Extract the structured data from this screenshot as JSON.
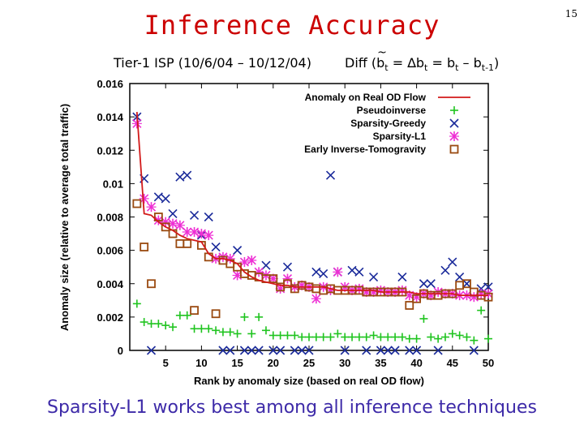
{
  "slide": {
    "title": "Inference Accuracy",
    "page_number": "15",
    "subtitle_left": "Tier-1 ISP (10/6/04 – 10/12/04)",
    "subtitle_right_prefix": "Diff (",
    "subtitle_right_b": "b",
    "subtitle_right_tilde": "~",
    "subtitle_right_sub1": "t",
    "subtitle_right_mid": " = ∆b",
    "subtitle_right_sub2": "t",
    "subtitle_right_mid2": " = b",
    "subtitle_right_sub3": "t",
    "subtitle_right_mid3": " – b",
    "subtitle_right_sub4": "t-1",
    "subtitle_right_suffix": ")",
    "caption": "Sparsity-L1 works best among all inference techniques"
  },
  "colors": {
    "title": "#cc0000",
    "caption": "#3d2aa8",
    "real": "#d21a1a",
    "pseudoinverse": "#1fc41f",
    "greedy": "#1a2a9a",
    "l1": "#ee2fd4",
    "tomogravity": "#9a4a10"
  },
  "chart_data": {
    "type": "scatter",
    "xlabel": "Rank by anomaly size (based on real OD flow)",
    "ylabel": "Anomaly size (relative to average total traffic)",
    "xlim": [
      0,
      50
    ],
    "ylim": [
      0,
      0.016
    ],
    "xticks": [
      "5",
      "10",
      "15",
      "20",
      "25",
      "30",
      "35",
      "40",
      "45",
      "50"
    ],
    "xtick_values": [
      5,
      10,
      15,
      20,
      25,
      30,
      35,
      40,
      45,
      50
    ],
    "yticks": [
      "0",
      "0.002",
      "0.004",
      "0.006",
      "0.008",
      "0.01",
      "0.012",
      "0.014",
      "0.016"
    ],
    "ytick_values": [
      0,
      0.002,
      0.004,
      0.006,
      0.008,
      0.01,
      0.012,
      0.014,
      0.016
    ],
    "legend_position": "top-right",
    "series": [
      {
        "name": "Anomaly on Real OD Flow",
        "style": "line",
        "x": [
          1,
          2,
          3,
          4,
          5,
          6,
          7,
          8,
          9,
          10,
          11,
          12,
          13,
          14,
          15,
          16,
          17,
          18,
          19,
          20,
          21,
          22,
          23,
          24,
          25,
          26,
          27,
          28,
          29,
          30,
          31,
          32,
          33,
          34,
          35,
          36,
          37,
          38,
          39,
          40,
          41,
          42,
          43,
          44,
          45,
          46,
          47,
          48,
          49,
          50
        ],
        "y": [
          0.0143,
          0.0082,
          0.0081,
          0.0077,
          0.0074,
          0.0072,
          0.0069,
          0.0067,
          0.0066,
          0.0065,
          0.0058,
          0.0055,
          0.0055,
          0.0054,
          0.0052,
          0.0047,
          0.0044,
          0.0042,
          0.0041,
          0.004,
          0.0039,
          0.0039,
          0.0038,
          0.0038,
          0.0038,
          0.0038,
          0.0038,
          0.0037,
          0.0036,
          0.0036,
          0.0036,
          0.0036,
          0.0036,
          0.0036,
          0.0035,
          0.0035,
          0.0035,
          0.0035,
          0.0035,
          0.0034,
          0.0034,
          0.0034,
          0.0034,
          0.0034,
          0.0034,
          0.0033,
          0.0033,
          0.0033,
          0.0033,
          0.0033
        ]
      },
      {
        "name": "Pseudoinverse",
        "style": "plus",
        "x": [
          1,
          2,
          3,
          4,
          5,
          6,
          7,
          8,
          9,
          10,
          11,
          12,
          13,
          14,
          15,
          16,
          17,
          18,
          19,
          20,
          21,
          22,
          23,
          24,
          25,
          26,
          27,
          28,
          29,
          30,
          31,
          32,
          33,
          34,
          35,
          36,
          37,
          38,
          39,
          40,
          41,
          42,
          43,
          44,
          45,
          46,
          47,
          48,
          49,
          50
        ],
        "y": [
          0.0028,
          0.0017,
          0.0016,
          0.0016,
          0.0015,
          0.0014,
          0.0021,
          0.0021,
          0.0013,
          0.0013,
          0.0013,
          0.0012,
          0.0011,
          0.0011,
          0.001,
          0.002,
          0.001,
          0.002,
          0.0012,
          0.0009,
          0.0009,
          0.0009,
          0.0009,
          0.0008,
          0.0008,
          0.0008,
          0.0008,
          0.0008,
          0.001,
          0.0008,
          0.0008,
          0.0008,
          0.0008,
          0.0009,
          0.0008,
          0.0008,
          0.0008,
          0.0008,
          0.0007,
          0.0007,
          0.0019,
          0.0008,
          0.0007,
          0.0008,
          0.001,
          0.0009,
          0.0008,
          0.0006,
          0.0024,
          0.0007
        ]
      },
      {
        "name": "Sparsity-Greedy",
        "style": "x",
        "x": [
          1,
          2,
          3,
          4,
          5,
          6,
          7,
          8,
          9,
          10,
          11,
          12,
          13,
          14,
          15,
          16,
          17,
          18,
          19,
          20,
          21,
          22,
          23,
          24,
          25,
          26,
          27,
          28,
          29,
          30,
          31,
          32,
          33,
          34,
          35,
          36,
          37,
          38,
          39,
          40,
          41,
          42,
          43,
          44,
          45,
          46,
          47,
          48,
          49,
          50
        ],
        "y": [
          0.014,
          0.0103,
          0.0,
          0.0092,
          0.0091,
          0.0082,
          0.0104,
          0.0105,
          0.0081,
          0.0069,
          0.008,
          0.0062,
          0.0,
          0.0,
          0.006,
          0.0,
          0.0,
          0.0,
          0.0051,
          0.0,
          0.0,
          0.005,
          0.0,
          0.0,
          0.0,
          0.0047,
          0.0046,
          0.0105,
          0.0047,
          0.0,
          0.0048,
          0.0047,
          0.0,
          0.0044,
          0.0,
          0.0,
          0.0,
          0.0044,
          0.0,
          0.0,
          0.004,
          0.004,
          0.0,
          0.0048,
          0.0053,
          0.0044,
          0.004,
          0.0,
          0.0037,
          0.0038
        ]
      },
      {
        "name": "Sparsity-L1",
        "style": "asterisk",
        "x": [
          1,
          2,
          3,
          4,
          5,
          6,
          7,
          8,
          9,
          10,
          11,
          12,
          13,
          14,
          15,
          16,
          17,
          18,
          19,
          20,
          21,
          22,
          23,
          24,
          25,
          26,
          27,
          28,
          29,
          30,
          31,
          32,
          33,
          34,
          35,
          36,
          37,
          38,
          39,
          40,
          41,
          42,
          43,
          44,
          45,
          46,
          47,
          48,
          49,
          50
        ],
        "y": [
          0.0136,
          0.0091,
          0.0086,
          0.0078,
          0.0077,
          0.0076,
          0.0075,
          0.0071,
          0.0071,
          0.007,
          0.0069,
          0.0055,
          0.0056,
          0.0055,
          0.0045,
          0.0053,
          0.0054,
          0.0047,
          0.0045,
          0.0043,
          0.0037,
          0.0043,
          0.0038,
          0.0039,
          0.0038,
          0.0031,
          0.0038,
          0.0036,
          0.0047,
          0.0038,
          0.0036,
          0.0037,
          0.0035,
          0.0035,
          0.0036,
          0.0035,
          0.0035,
          0.0036,
          0.0033,
          0.0032,
          0.0034,
          0.0033,
          0.0035,
          0.0034,
          0.0034,
          0.0033,
          0.0033,
          0.0032,
          0.0034,
          0.0034
        ]
      },
      {
        "name": "Early Inverse-Tomogravity",
        "style": "square",
        "x": [
          1,
          2,
          3,
          4,
          5,
          6,
          7,
          8,
          9,
          10,
          11,
          12,
          13,
          14,
          15,
          16,
          17,
          18,
          19,
          20,
          21,
          22,
          23,
          24,
          25,
          26,
          27,
          28,
          29,
          30,
          31,
          32,
          33,
          34,
          35,
          36,
          37,
          38,
          39,
          40,
          41,
          42,
          43,
          44,
          45,
          46,
          47,
          48,
          49,
          50
        ],
        "y": [
          0.0088,
          0.0062,
          0.004,
          0.008,
          0.0074,
          0.007,
          0.0064,
          0.0064,
          0.0024,
          0.0063,
          0.0056,
          0.0022,
          0.0054,
          0.0052,
          0.005,
          0.0046,
          0.0045,
          0.0044,
          0.0043,
          0.0043,
          0.0038,
          0.004,
          0.0037,
          0.0039,
          0.0038,
          0.0037,
          0.0036,
          0.0037,
          0.0036,
          0.0036,
          0.0036,
          0.0036,
          0.0035,
          0.0035,
          0.0035,
          0.0035,
          0.0035,
          0.0035,
          0.0027,
          0.0031,
          0.0034,
          0.0033,
          0.0033,
          0.0034,
          0.0034,
          0.0039,
          0.004,
          0.0035,
          0.0033,
          0.0032
        ]
      }
    ]
  }
}
